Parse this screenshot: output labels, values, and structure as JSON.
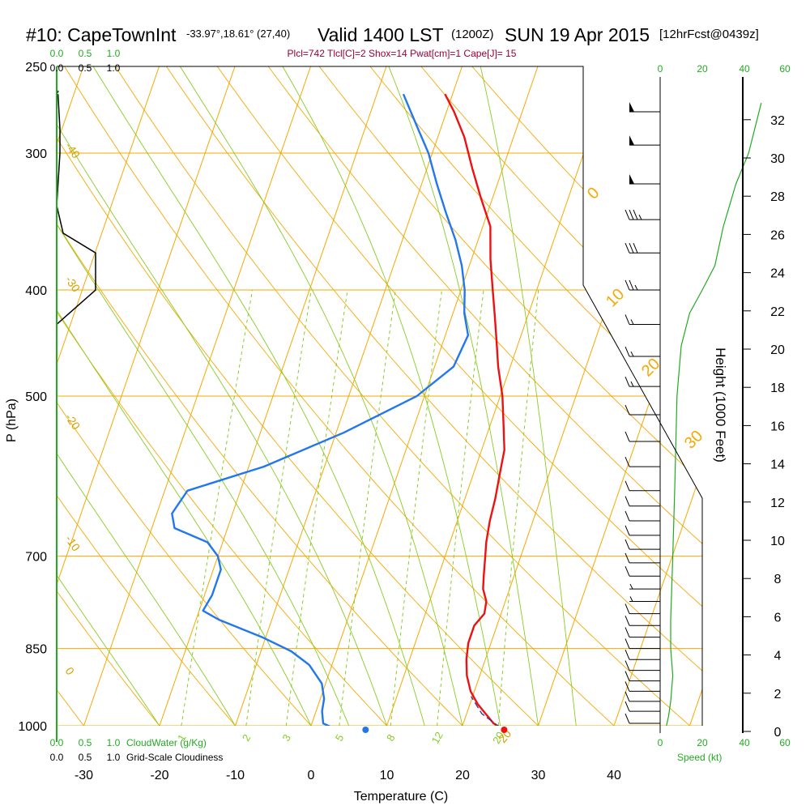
{
  "header": {
    "station": "#10: CapeTownInt",
    "coords": "-33.97°,18.61° (27,40)",
    "valid": "Valid 1400 LST",
    "zulu": "(1200Z)",
    "date": "SUN 19 Apr 2015",
    "forecast": "[12hrFcst@0439z]",
    "indices": "Plcl=742 Tlcl[C]=2 Shox=14 Pwat[cm]=1 Cape[J]= 15"
  },
  "colors": {
    "temperature": "#ee1111",
    "dewpoint": "#2277ee",
    "grid": "#f5a800",
    "mixing_ratio": "#88cc22",
    "cloud_water_axis": "#22aa22",
    "cloud_fraction": "#000000"
  },
  "chart_data": {
    "type": "line",
    "diagram": "skew-T log-p",
    "xlabel": "Temperature (C)",
    "ylabel": "P (hPa)",
    "right_ylabel": "Height (1000 Feet)",
    "wind_label": "Speed (kt)",
    "cloud_water_label": "CloudWater (g/Kg)",
    "cloudiness_label": "Grid-Scale Cloudiness",
    "x_ticks": [
      -30,
      -20,
      -10,
      0,
      10,
      20,
      30,
      40
    ],
    "p_ticks": [
      250,
      300,
      400,
      500,
      700,
      850,
      1000
    ],
    "height_ticks_kft": [
      0,
      2,
      4,
      6,
      8,
      10,
      12,
      14,
      16,
      18,
      20,
      22,
      24,
      26,
      28,
      30,
      32
    ],
    "speed_ticks": [
      "0",
      "20",
      "40",
      "60"
    ],
    "cloud_ticks": [
      "0.0",
      "0.5",
      "1.0"
    ],
    "mixing_ratio_labels": [
      "1",
      "2",
      "3",
      "5",
      "8",
      "12",
      "20"
    ],
    "isotherm_labels_left": [
      "-40",
      "-30",
      "-20",
      "-10",
      "0"
    ],
    "isotherm_labels_right": [
      "0",
      "10",
      "20",
      "30"
    ],
    "series": [
      {
        "name": "Temperature",
        "points": [
          [
            25.0,
            1003
          ],
          [
            24.0,
            995
          ],
          [
            22.5,
            975
          ],
          [
            21.0,
            955
          ],
          [
            19.5,
            930
          ],
          [
            18.3,
            900
          ],
          [
            17.5,
            870
          ],
          [
            17.0,
            840
          ],
          [
            17.0,
            810
          ],
          [
            17.8,
            790
          ],
          [
            17.5,
            770
          ],
          [
            16.5,
            750
          ],
          [
            16.0,
            730
          ],
          [
            15.3,
            700
          ],
          [
            14.8,
            680
          ],
          [
            14.3,
            650
          ],
          [
            14.0,
            620
          ],
          [
            13.5,
            590
          ],
          [
            13.0,
            560
          ],
          [
            11.7,
            530
          ],
          [
            10.3,
            500
          ],
          [
            8.4,
            470
          ],
          [
            7.0,
            445
          ],
          [
            5.5,
            420
          ],
          [
            4.2,
            400
          ],
          [
            2.5,
            375
          ],
          [
            1.0,
            350
          ],
          [
            -1.5,
            330
          ],
          [
            -4.0,
            310
          ],
          [
            -6.5,
            290
          ],
          [
            -9.0,
            275
          ],
          [
            -11.0,
            265
          ]
        ]
      },
      {
        "name": "Dewpoint",
        "points": [
          [
            2.8,
            1003
          ],
          [
            1.5,
            995
          ],
          [
            0.8,
            970
          ],
          [
            0.5,
            945
          ],
          [
            -0.5,
            915
          ],
          [
            -3.0,
            880
          ],
          [
            -6.0,
            855
          ],
          [
            -10.5,
            830
          ],
          [
            -17.0,
            800
          ],
          [
            -19.5,
            785
          ],
          [
            -19.0,
            760
          ],
          [
            -19.0,
            720
          ],
          [
            -20.0,
            700
          ],
          [
            -22.0,
            680
          ],
          [
            -27.0,
            660
          ],
          [
            -28.0,
            640
          ],
          [
            -27.0,
            610
          ],
          [
            -18.0,
            580
          ],
          [
            -9.0,
            540
          ],
          [
            -1.0,
            500
          ],
          [
            2.5,
            470
          ],
          [
            3.0,
            440
          ],
          [
            1.5,
            420
          ],
          [
            0.5,
            400
          ],
          [
            -1.0,
            380
          ],
          [
            -3.0,
            360
          ],
          [
            -5.5,
            340
          ],
          [
            -8.0,
            320
          ],
          [
            -10.5,
            300
          ],
          [
            -13.0,
            285
          ],
          [
            -16.5,
            265
          ]
        ]
      },
      {
        "name": "Parcel",
        "points": [
          [
            25.0,
            1003
          ],
          [
            22.0,
            975
          ],
          [
            19.8,
            940
          ]
        ]
      }
    ],
    "surface_temperature": 25.5,
    "surface_dewpoint": 7.2,
    "cloud_fraction_profile": [
      [
        0.0,
        430
      ],
      [
        0.6,
        400
      ],
      [
        0.6,
        370
      ],
      [
        0.1,
        355
      ],
      [
        0.0,
        335
      ],
      [
        0.05,
        300
      ],
      [
        0.05,
        285
      ],
      [
        0.02,
        265
      ]
    ],
    "winds": [
      {
        "p": 995,
        "speed": 10,
        "dir": 270
      },
      {
        "p": 970,
        "speed": 10,
        "dir": 270
      },
      {
        "p": 950,
        "speed": 10,
        "dir": 270
      },
      {
        "p": 930,
        "speed": 10,
        "dir": 270
      },
      {
        "p": 910,
        "speed": 10,
        "dir": 270
      },
      {
        "p": 890,
        "speed": 10,
        "dir": 270
      },
      {
        "p": 870,
        "speed": 10,
        "dir": 270
      },
      {
        "p": 850,
        "speed": 10,
        "dir": 270
      },
      {
        "p": 830,
        "speed": 10,
        "dir": 270
      },
      {
        "p": 810,
        "speed": 10,
        "dir": 270
      },
      {
        "p": 790,
        "speed": 10,
        "dir": 270
      },
      {
        "p": 770,
        "speed": 5,
        "dir": 270
      },
      {
        "p": 750,
        "speed": 5,
        "dir": 270
      },
      {
        "p": 730,
        "speed": 10,
        "dir": 270
      },
      {
        "p": 710,
        "speed": 10,
        "dir": 270
      },
      {
        "p": 690,
        "speed": 10,
        "dir": 270
      },
      {
        "p": 670,
        "speed": 10,
        "dir": 270
      },
      {
        "p": 650,
        "speed": 10,
        "dir": 270
      },
      {
        "p": 630,
        "speed": 10,
        "dir": 270
      },
      {
        "p": 610,
        "speed": 10,
        "dir": 270
      },
      {
        "p": 580,
        "speed": 10,
        "dir": 270
      },
      {
        "p": 550,
        "speed": 10,
        "dir": 270
      },
      {
        "p": 520,
        "speed": 10,
        "dir": 270
      },
      {
        "p": 490,
        "speed": 15,
        "dir": 270
      },
      {
        "p": 460,
        "speed": 15,
        "dir": 270
      },
      {
        "p": 430,
        "speed": 15,
        "dir": 270
      },
      {
        "p": 400,
        "speed": 25,
        "dir": 270
      },
      {
        "p": 370,
        "speed": 30,
        "dir": 270
      },
      {
        "p": 345,
        "speed": 35,
        "dir": 270
      },
      {
        "p": 320,
        "speed": 50,
        "dir": 270
      },
      {
        "p": 295,
        "speed": 50,
        "dir": 270
      },
      {
        "p": 275,
        "speed": 50,
        "dir": 270
      }
    ],
    "wind_speed_profile": [
      [
        3,
        1000
      ],
      [
        4,
        980
      ],
      [
        5,
        950
      ],
      [
        6,
        900
      ],
      [
        5,
        850
      ],
      [
        5,
        800
      ],
      [
        6,
        700
      ],
      [
        7,
        600
      ],
      [
        8,
        500
      ],
      [
        10,
        450
      ],
      [
        14,
        420
      ],
      [
        20,
        400
      ],
      [
        26,
        380
      ],
      [
        30,
        350
      ],
      [
        36,
        320
      ],
      [
        42,
        300
      ],
      [
        48,
        270
      ]
    ]
  }
}
